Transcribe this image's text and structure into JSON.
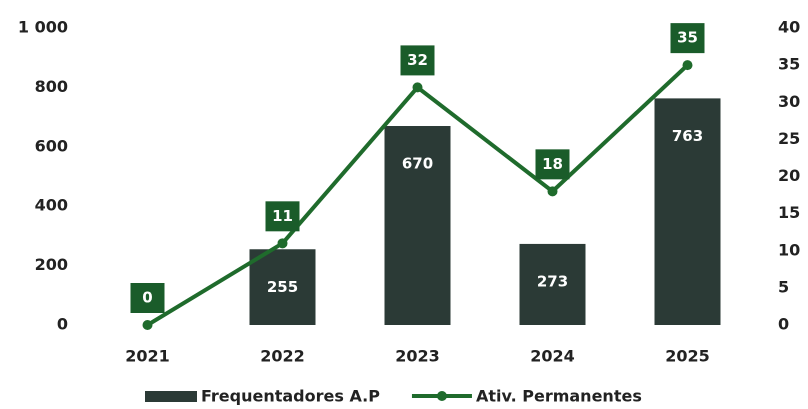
{
  "chart_data": {
    "type": "bar_line",
    "categories": [
      "2021",
      "2022",
      "2023",
      "2024",
      "2025"
    ],
    "series": [
      {
        "name": "Frequentadores A.P",
        "color": "#2b3a36",
        "type": "bar",
        "values": [
          null,
          255,
          670,
          273,
          763
        ]
      },
      {
        "name": "Ativ. Permanentes",
        "color": "#1f6b2c",
        "type": "line",
        "axis": "y2",
        "values": [
          0,
          11,
          32,
          18,
          35
        ]
      }
    ],
    "ylim": [
      0,
      1000
    ],
    "yticks": [
      0,
      200,
      400,
      600,
      800,
      {
        "value": 1000,
        "label": "1 000"
      }
    ],
    "y2lim": [
      0,
      40
    ],
    "y2ticks": [
      0,
      5,
      10,
      15,
      20,
      25,
      30,
      35,
      40
    ],
    "label_color": "#1a5c2a",
    "legend": "bottom"
  }
}
